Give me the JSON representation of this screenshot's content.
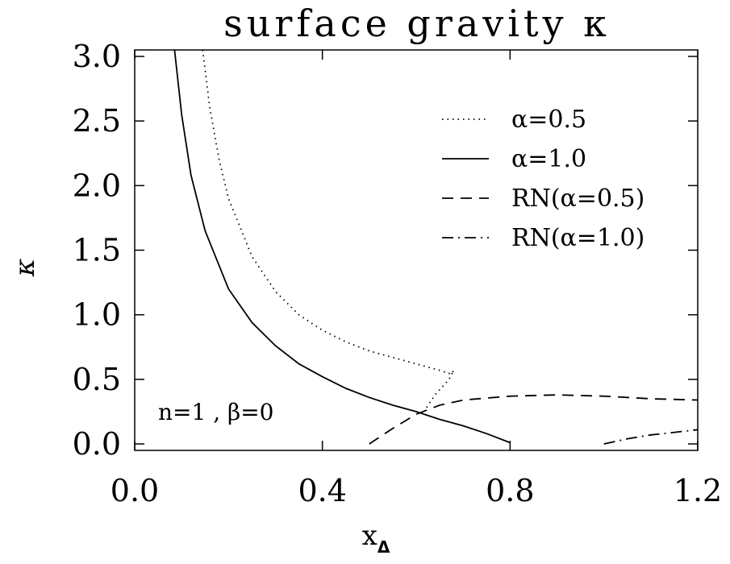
{
  "chart_data": {
    "type": "line",
    "title": "surface gravity κ",
    "xlabel": "x",
    "xlabel_sub": "Δ",
    "ylabel": "κ",
    "xlim": [
      0.0,
      1.2
    ],
    "ylim": [
      -0.05,
      3.05
    ],
    "x_ticks": [
      "0.0",
      "0.4",
      "0.8",
      "1.2"
    ],
    "y_ticks": [
      "0.0",
      "0.5",
      "1.0",
      "1.5",
      "2.0",
      "2.5",
      "3.0"
    ],
    "grid": false,
    "legend_position": "top-right",
    "annotation": "n=1 , β=0",
    "series": [
      {
        "name": "α=0.5",
        "style": "dotted",
        "color": "#000000",
        "points": [
          [
            0.145,
            3.05
          ],
          [
            0.16,
            2.6
          ],
          [
            0.18,
            2.2
          ],
          [
            0.2,
            1.9
          ],
          [
            0.25,
            1.45
          ],
          [
            0.3,
            1.18
          ],
          [
            0.35,
            1.0
          ],
          [
            0.4,
            0.88
          ],
          [
            0.45,
            0.79
          ],
          [
            0.5,
            0.72
          ],
          [
            0.55,
            0.67
          ],
          [
            0.6,
            0.62
          ],
          [
            0.65,
            0.57
          ],
          [
            0.675,
            0.54
          ],
          [
            0.68,
            0.57
          ],
          [
            0.67,
            0.5
          ],
          [
            0.64,
            0.38
          ],
          [
            0.62,
            0.27
          ]
        ]
      },
      {
        "name": "α=1.0",
        "style": "solid",
        "color": "#000000",
        "points": [
          [
            0.085,
            3.05
          ],
          [
            0.1,
            2.55
          ],
          [
            0.12,
            2.08
          ],
          [
            0.15,
            1.65
          ],
          [
            0.2,
            1.2
          ],
          [
            0.25,
            0.94
          ],
          [
            0.3,
            0.76
          ],
          [
            0.35,
            0.62
          ],
          [
            0.4,
            0.52
          ],
          [
            0.45,
            0.43
          ],
          [
            0.5,
            0.36
          ],
          [
            0.55,
            0.3
          ],
          [
            0.6,
            0.25
          ],
          [
            0.65,
            0.19
          ],
          [
            0.7,
            0.14
          ],
          [
            0.75,
            0.08
          ],
          [
            0.8,
            0.01
          ]
        ]
      },
      {
        "name": "RN(α=0.5)",
        "style": "dashed",
        "color": "#000000",
        "points": [
          [
            0.5,
            0.0
          ],
          [
            0.55,
            0.12
          ],
          [
            0.6,
            0.23
          ],
          [
            0.65,
            0.3
          ],
          [
            0.7,
            0.34
          ],
          [
            0.8,
            0.37
          ],
          [
            0.9,
            0.38
          ],
          [
            1.0,
            0.37
          ],
          [
            1.1,
            0.35
          ],
          [
            1.2,
            0.34
          ]
        ]
      },
      {
        "name": "RN(α=1.0)",
        "style": "dashdot",
        "color": "#000000",
        "points": [
          [
            1.0,
            0.0
          ],
          [
            1.05,
            0.04
          ],
          [
            1.1,
            0.07
          ],
          [
            1.15,
            0.09
          ],
          [
            1.2,
            0.11
          ]
        ]
      }
    ]
  }
}
